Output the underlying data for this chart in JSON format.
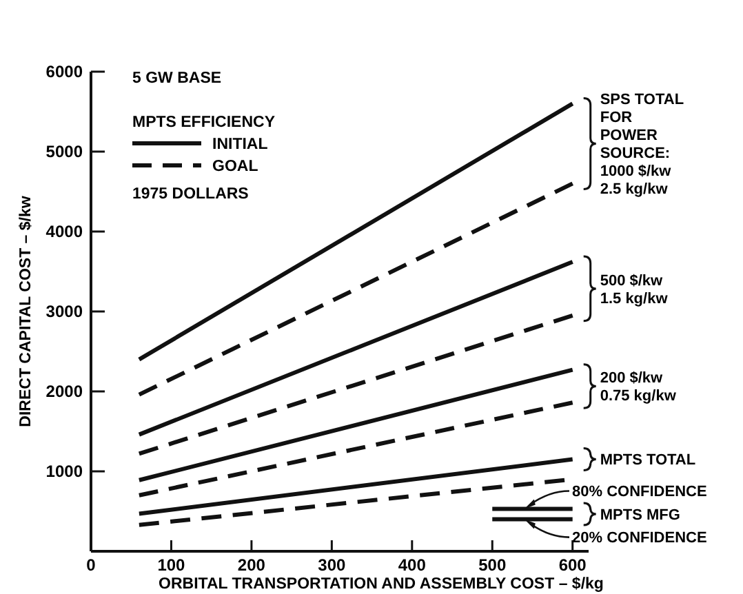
{
  "chart_data": {
    "type": "line",
    "xlabel": "ORBITAL TRANSPORTATION AND ASSEMBLY COST – $/kg",
    "ylabel": "DIRECT CAPITAL COST – $/kw",
    "legend_title": "MPTS EFFICIENCY",
    "legend": "top left",
    "grid": false,
    "xlim": [
      0,
      620
    ],
    "xticks": [
      0,
      100,
      200,
      300,
      400,
      500,
      600
    ],
    "ylim": [
      0,
      6000
    ],
    "yticks": [
      1000,
      2000,
      3000,
      4000,
      5000,
      6000
    ],
    "series": [
      {
        "name": "INITIAL",
        "color": "#111111",
        "line_style": "solid",
        "x": [
          60,
          600
        ],
        "values": [
          2400,
          5600
        ]
      },
      {
        "name": "GOAL",
        "color": "#111111",
        "line_style": "dashed",
        "x": [
          60,
          600
        ],
        "values": [
          1960,
          4600
        ]
      },
      {
        "color": "#111111",
        "line_style": "solid",
        "x": [
          60,
          600
        ],
        "values": [
          1460,
          3620
        ]
      },
      {
        "color": "#111111",
        "line_style": "dashed",
        "x": [
          60,
          600
        ],
        "values": [
          1220,
          2950
        ]
      },
      {
        "color": "#111111",
        "line_style": "solid",
        "x": [
          60,
          600
        ],
        "values": [
          890,
          2270
        ]
      },
      {
        "color": "#111111",
        "line_style": "dashed",
        "x": [
          60,
          600
        ],
        "values": [
          700,
          1860
        ]
      },
      {
        "color": "#111111",
        "line_style": "solid",
        "x": [
          60,
          600
        ],
        "values": [
          470,
          1150
        ]
      },
      {
        "color": "#111111",
        "line_style": "dashed",
        "x": [
          60,
          590
        ],
        "values": [
          330,
          890
        ]
      },
      {
        "color": "#111111",
        "line_style": "solid",
        "x": [
          500,
          600
        ],
        "values": [
          530,
          530
        ]
      },
      {
        "color": "#111111",
        "line_style": "solid",
        "x": [
          500,
          600
        ],
        "values": [
          400,
          400
        ]
      }
    ],
    "annotations": [
      "5 GW BASE",
      "1975 DOLLARS",
      "SPS TOTAL\nFOR\nPOWER\nSOURCE:\n1000 $/kw\n2.5 kg/kw",
      "500 $/kw\n1.5 kg/kw",
      "200 $/kw\n0.75 kg/kw",
      "MPTS TOTAL",
      "MPTS MFG",
      {
        "text": "80% CONFIDENCE",
        "x": 540,
        "y": 530
      },
      {
        "text": "20% CONFIDENCE",
        "x": 540,
        "y": 400
      }
    ]
  }
}
